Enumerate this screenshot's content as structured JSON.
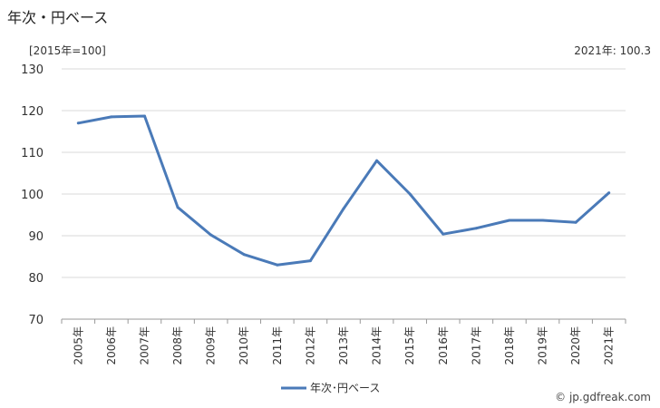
{
  "header": {
    "title": "年次・円ベース",
    "unit": "[2015年=100]",
    "note": "2021年: 100.3"
  },
  "chart_data": {
    "type": "line",
    "title": "年次・円ベース",
    "unit_label": "[2015年=100]",
    "x": [
      "2005年",
      "2006年",
      "2007年",
      "2008年",
      "2009年",
      "2010年",
      "2011年",
      "2012年",
      "2013年",
      "2014年",
      "2015年",
      "2016年",
      "2017年",
      "2018年",
      "2019年",
      "2020年",
      "2021年"
    ],
    "series": [
      {
        "name": "年次･円ベース",
        "color": "#4a7ab8",
        "values": [
          117.0,
          118.5,
          118.7,
          96.8,
          90.2,
          85.5,
          83.0,
          84.0,
          96.5,
          108.0,
          100.0,
          90.4,
          91.8,
          93.7,
          93.7,
          93.2,
          100.3
        ]
      }
    ],
    "ylim": [
      70,
      130
    ],
    "yticks": [
      70,
      80,
      90,
      100,
      110,
      120,
      130
    ],
    "grid": true,
    "legend_position": "bottom-center"
  },
  "footer": {
    "source": "© jp.gdfreak.com"
  }
}
